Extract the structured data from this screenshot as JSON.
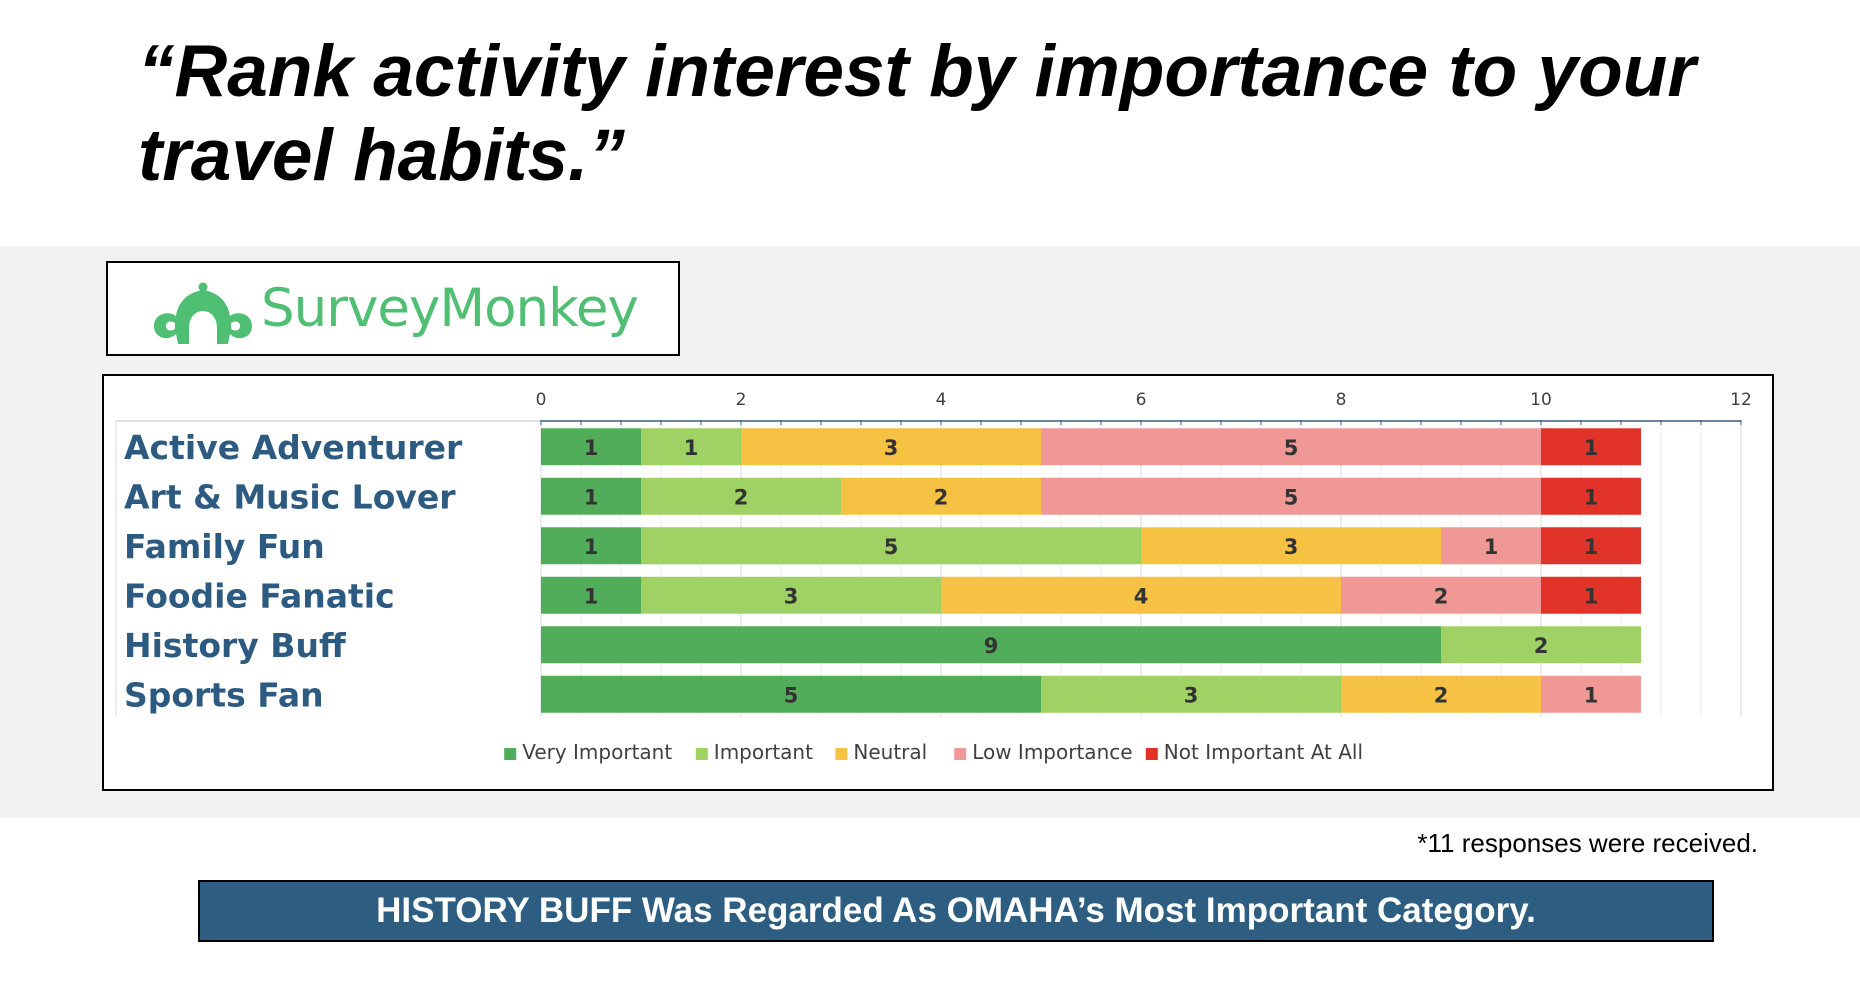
{
  "slide": {
    "title": "“Rank activity interest by importance to your travel habits.”",
    "footnote": "*11 responses were received.",
    "banner": "HISTORY BUFF Was Regarded As OMAHA’s Most Important Category."
  },
  "logo": {
    "text": "SurveyMonkey",
    "icon": "monkey-logo-icon",
    "color": "#4fbf73"
  },
  "colors": {
    "banner_bg": "#2d5e82",
    "category_text": "#2d5a80",
    "background_band": "#f2f2f2"
  },
  "chart_data": {
    "type": "bar",
    "orientation": "horizontal",
    "stacked": true,
    "categories": [
      "Active Adventurer",
      "Art & Music Lover",
      "Family Fun",
      "Foodie Fanatic",
      "History Buff",
      "Sports Fan"
    ],
    "series": [
      {
        "name": "Very Important",
        "color": "#52ad5a",
        "values": [
          1,
          1,
          1,
          1,
          9,
          5
        ]
      },
      {
        "name": "Important",
        "color": "#a0d164",
        "values": [
          1,
          2,
          5,
          3,
          2,
          3
        ]
      },
      {
        "name": "Neutral",
        "color": "#f6c244",
        "values": [
          3,
          2,
          3,
          4,
          0,
          2
        ]
      },
      {
        "name": "Low Importance",
        "color": "#f09895",
        "values": [
          5,
          5,
          1,
          2,
          0,
          1
        ]
      },
      {
        "name": "Not Important At All",
        "color": "#e2332b",
        "values": [
          1,
          1,
          1,
          1,
          0,
          0
        ]
      }
    ],
    "xlim": [
      0,
      12
    ],
    "xticks": [
      0,
      2,
      4,
      6,
      8,
      10,
      12
    ],
    "axis_position": "top",
    "data_labels": true,
    "grid": true,
    "legend_position": "bottom"
  }
}
